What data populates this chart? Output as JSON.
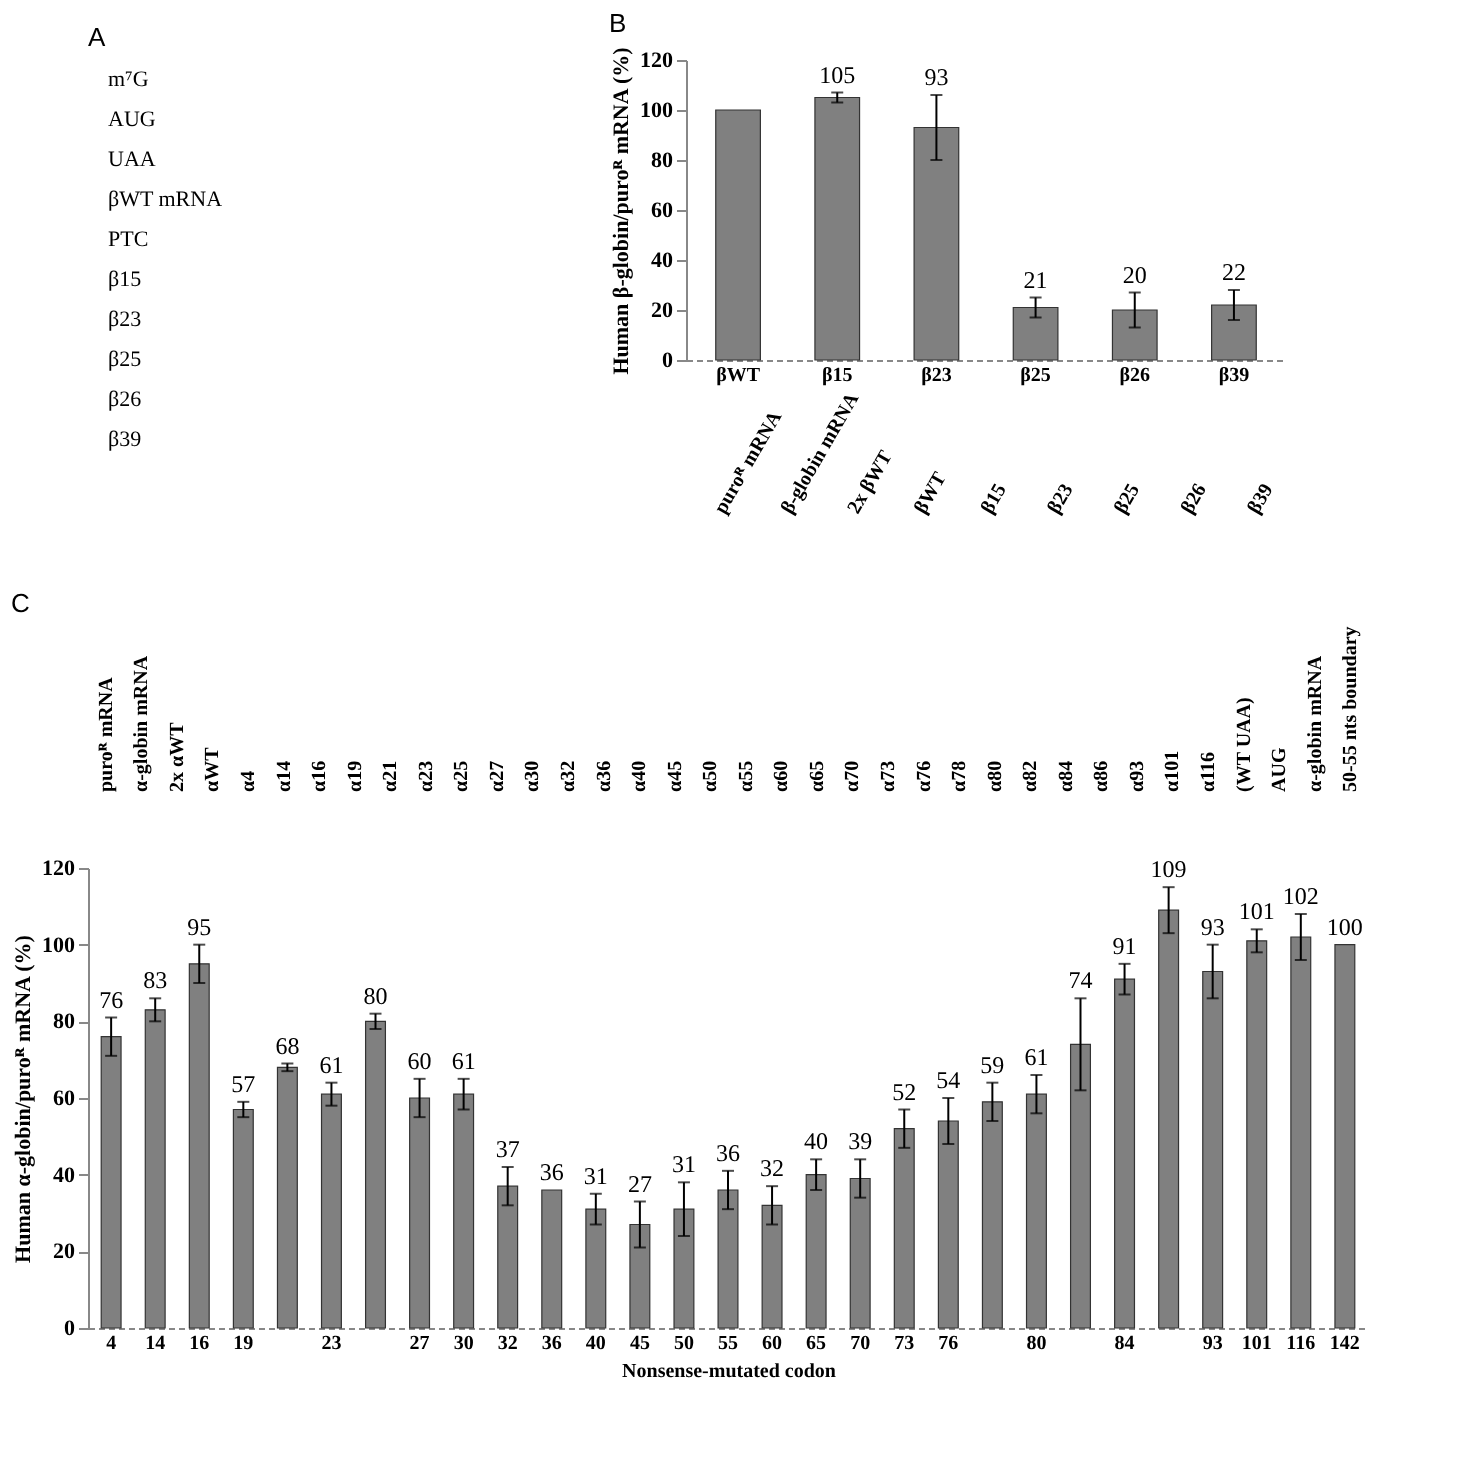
{
  "chart_data": [
    {
      "type": "other",
      "title": "A",
      "annotations": [
        "m⁷G",
        "AUG",
        "UAA",
        "βWT mRNA",
        "PTC",
        "β15",
        "β23",
        "β25",
        "β26",
        "β39"
      ]
    },
    {
      "type": "bar",
      "title": "B",
      "ylabel": "Human β-globin/puroᴿ mRNA (%)",
      "categories": [
        "βWT",
        "β15",
        "β23",
        "β25",
        "β26",
        "β39"
      ],
      "values": [
        100,
        105,
        93,
        21,
        20,
        22
      ],
      "value_labels": [
        null,
        "105",
        "93",
        "21",
        "20",
        "22"
      ],
      "errors": [
        null,
        2,
        13,
        4,
        7,
        6
      ],
      "color": "#808080",
      "ylim": [
        0,
        120
      ],
      "yticks": [
        0,
        20,
        40,
        60,
        80,
        100,
        120
      ],
      "annotations": [
        "puroᴿ mRNA",
        "β-globin mRNA",
        "2x βWT",
        "βWT",
        "β15",
        "β23",
        "β25",
        "β26",
        "β39"
      ]
    },
    {
      "type": "bar",
      "title": "C",
      "ylabel": "Human α-globin/puroᴿ mRNA (%)",
      "xlabel": "Nonsense-mutated codon",
      "categories": [
        "4",
        "14",
        "16",
        "19",
        null,
        "23",
        null,
        "27",
        "30",
        "32",
        "36",
        "40",
        "45",
        "50",
        "55",
        "60",
        "65",
        "70",
        "73",
        "76",
        null,
        "80",
        null,
        "84",
        null,
        "93",
        "101",
        "116",
        "142"
      ],
      "values": [
        76,
        83,
        95,
        57,
        68,
        61,
        80,
        60,
        61,
        37,
        36,
        31,
        27,
        31,
        36,
        32,
        40,
        39,
        52,
        54,
        59,
        61,
        74,
        91,
        109,
        93,
        101,
        102,
        100
      ],
      "errors": [
        5,
        3,
        5,
        2,
        1,
        3,
        2,
        5,
        4,
        5,
        null,
        4,
        6,
        7,
        5,
        5,
        4,
        5,
        5,
        6,
        5,
        5,
        12,
        4,
        6,
        7,
        3,
        6,
        null
      ],
      "data_labels": true,
      "color": "#808080",
      "ylim": [
        0,
        120
      ],
      "yticks": [
        0,
        20,
        40,
        60,
        80,
        100,
        120
      ],
      "annotations": [
        "puroᴿ mRNA",
        "α-globin mRNA",
        "2x αWT",
        "αWT",
        "α4",
        "α14",
        "α16",
        "α19",
        "α21",
        "α23",
        "α25",
        "α27",
        "α30",
        "α32",
        "α36",
        "α40",
        "α45",
        "α50",
        "α55",
        "α60",
        "α65",
        "α70",
        "α73",
        "α76",
        "α78",
        "α80",
        "α82",
        "α84",
        "α86",
        "α93",
        "α101",
        "α116",
        "(WT UAA)",
        "AUG",
        "α-globin mRNA",
        "50-55 nts boundary"
      ]
    }
  ]
}
